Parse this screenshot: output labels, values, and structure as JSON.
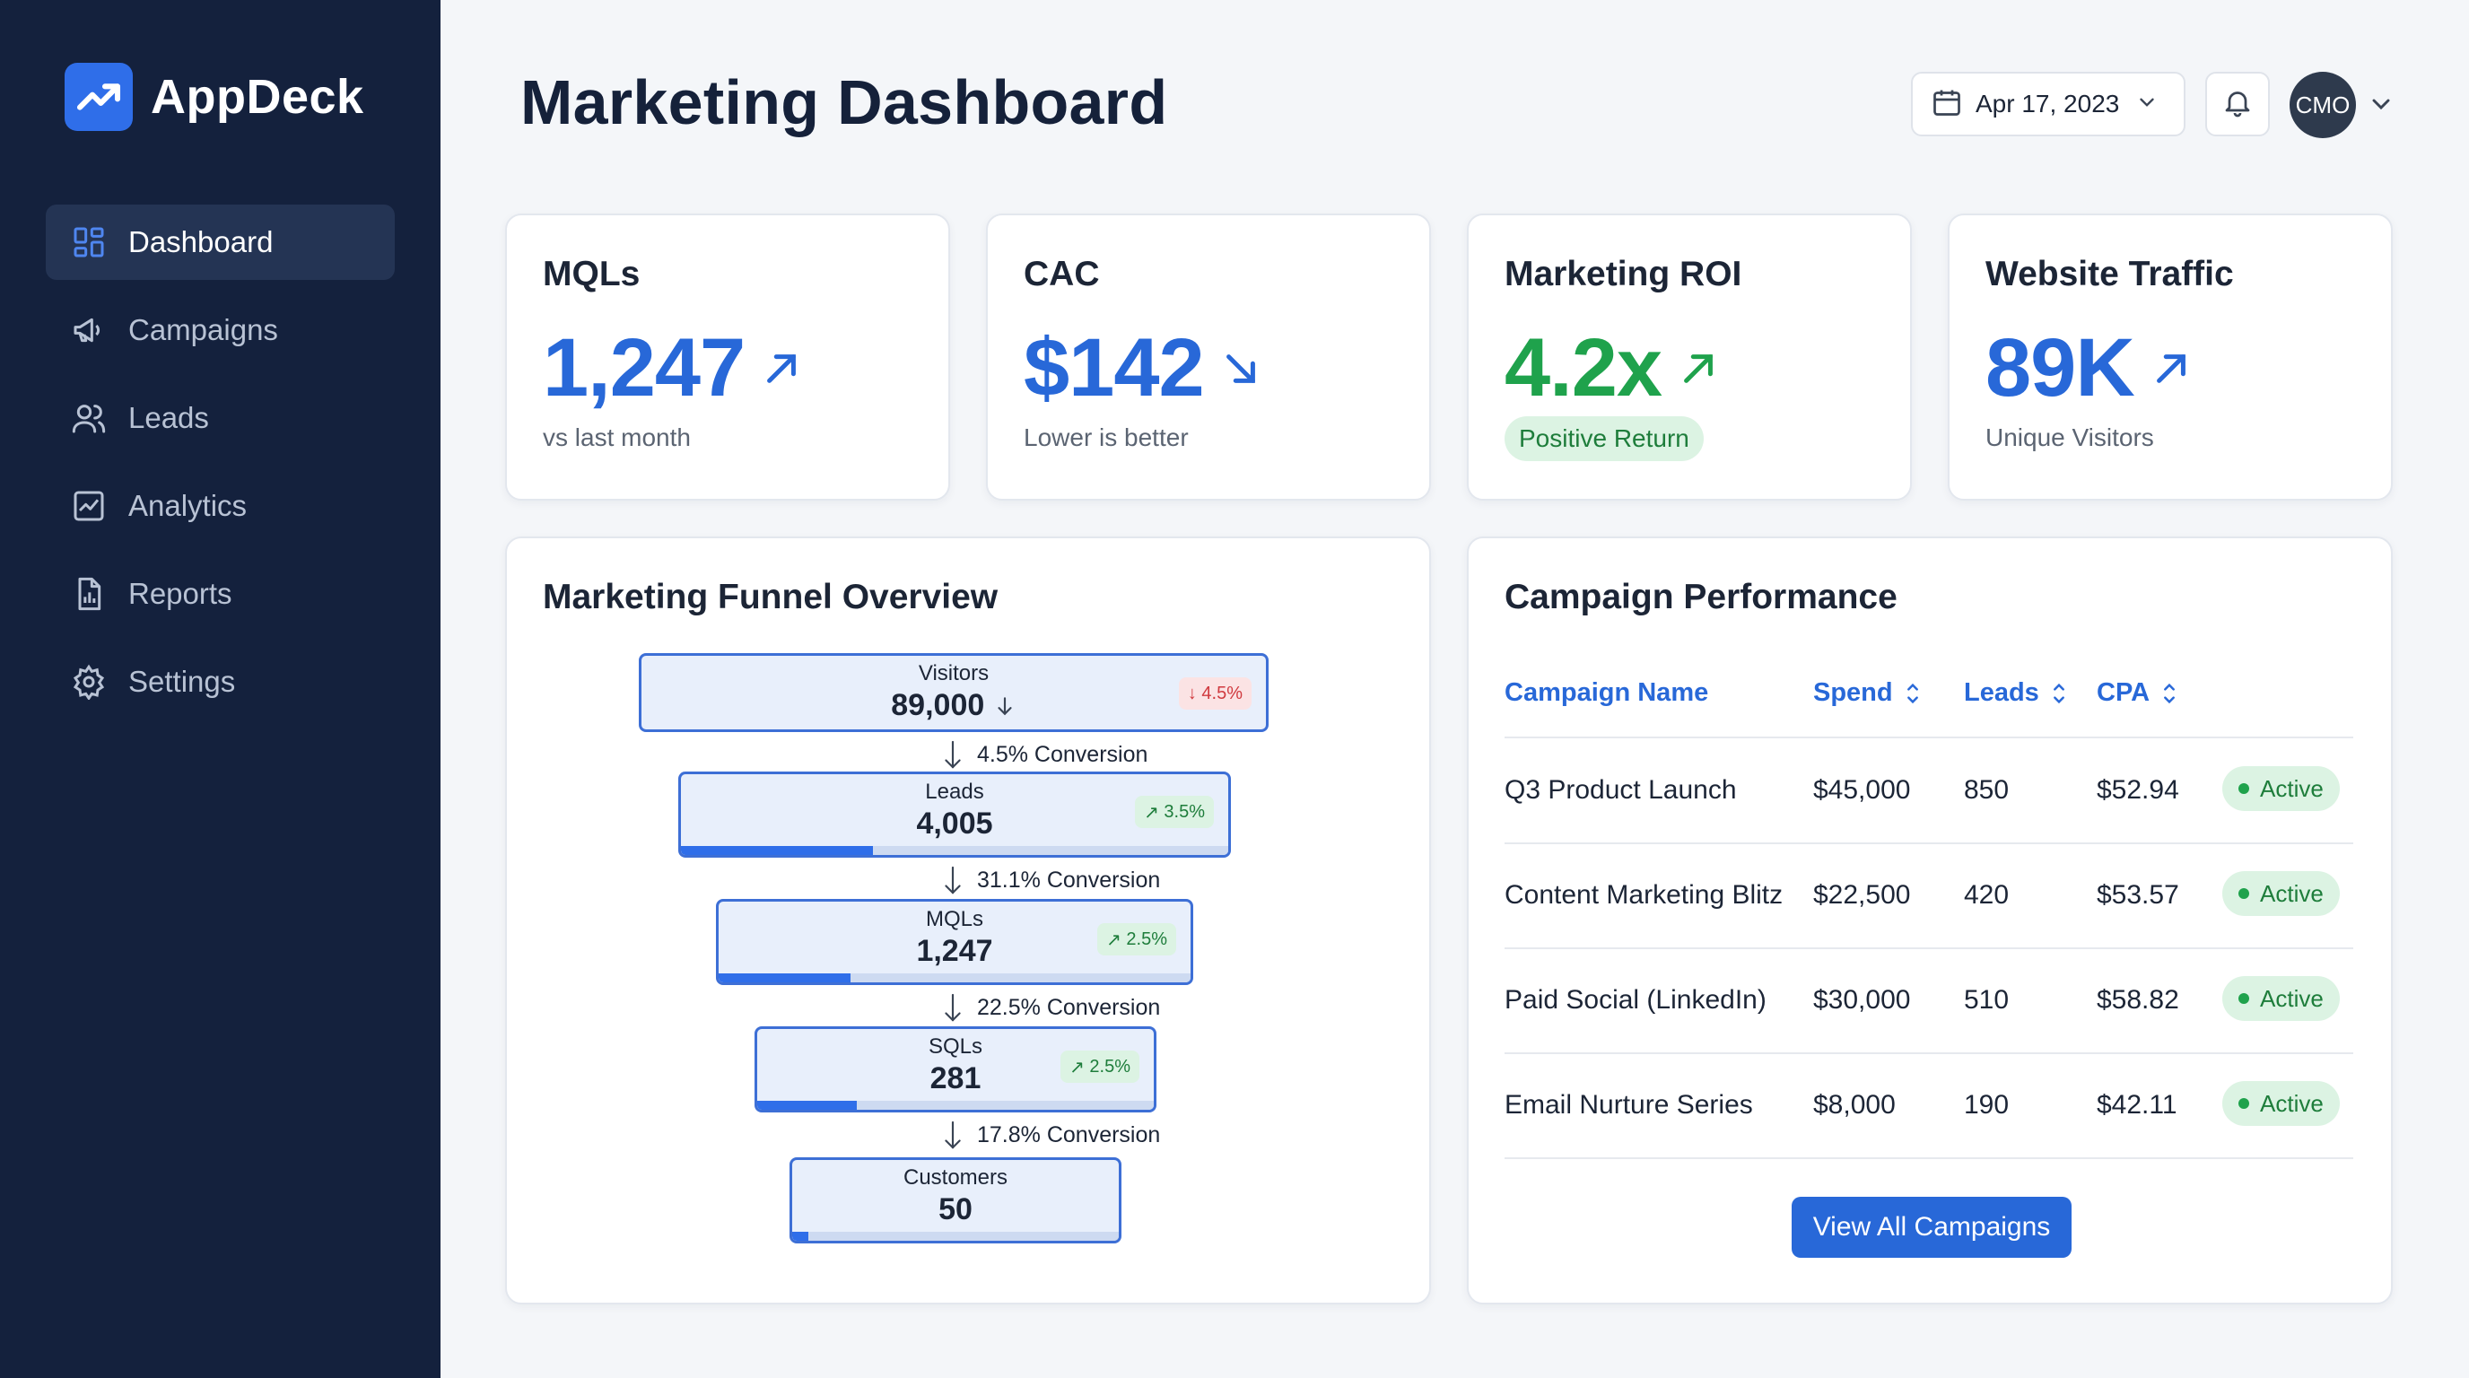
{
  "app": {
    "name": "AppDeck",
    "logo_icon": "trend-up-logo-icon"
  },
  "sidebar": {
    "items": [
      {
        "label": "Dashboard",
        "icon": "dashboard-icon",
        "active": true
      },
      {
        "label": "Campaigns",
        "icon": "megaphone-icon"
      },
      {
        "label": "Leads",
        "icon": "users-icon"
      },
      {
        "label": "Analytics",
        "icon": "analytics-icon"
      },
      {
        "label": "Reports",
        "icon": "report-icon"
      },
      {
        "label": "Settings",
        "icon": "gear-icon"
      }
    ]
  },
  "header": {
    "title": "Marketing Dashboard",
    "date": "Apr 17, 2023",
    "avatar": "CMO"
  },
  "kpis": [
    {
      "title": "MQLs",
      "value": "1,247",
      "trend": "up",
      "sub": "vs last month",
      "color": "#2868d8"
    },
    {
      "title": "CAC",
      "value": "$142",
      "trend": "down",
      "sub": "Lower is better",
      "color": "#2868d8"
    },
    {
      "title": "Marketing ROI",
      "value": "4.2x",
      "trend": "up",
      "pill": "Positive Return",
      "color": "#1fa24c"
    },
    {
      "title": "Website Traffic",
      "value": "89K",
      "trend": "up",
      "sub": "Unique Visitors",
      "color": "#2868d8"
    }
  ],
  "funnel": {
    "title": "Marketing Funnel Overview",
    "stages": [
      {
        "label": "Visitors",
        "value": "89,000",
        "badge": "4.5%",
        "badge_dir": "down",
        "progress": 0
      },
      {
        "label": "Leads",
        "value": "4,005",
        "badge": "3.5%",
        "badge_dir": "up",
        "progress": 0.35
      },
      {
        "label": "MQLs",
        "value": "1,247",
        "badge": "2.5%",
        "badge_dir": "up",
        "progress": 0.28
      },
      {
        "label": "SQLs",
        "value": "281",
        "badge": "2.5%",
        "badge_dir": "up",
        "progress": 0.25
      },
      {
        "label": "Customers",
        "value": "50",
        "progress": 0.05
      }
    ],
    "conversions": [
      "4.5% Conversion",
      "31.1% Conversion",
      "22.5% Conversion",
      "17.8% Conversion"
    ]
  },
  "campaigns": {
    "title": "Campaign Performance",
    "columns": [
      "Campaign Name",
      "Spend",
      "Leads",
      "CPA"
    ],
    "rows": [
      {
        "name": "Q3 Product Launch",
        "spend": "$45,000",
        "leads": "850",
        "cpa": "$52.94",
        "status": "Active"
      },
      {
        "name": "Content Marketing Blitz",
        "spend": "$22,500",
        "leads": "420",
        "cpa": "$53.57",
        "status": "Active"
      },
      {
        "name": "Paid Social (LinkedIn)",
        "spend": "$30,000",
        "leads": "510",
        "cpa": "$58.82",
        "status": "Active"
      },
      {
        "name": "Email Nurture Series",
        "spend": "$8,000",
        "leads": "190",
        "cpa": "$42.11",
        "status": "Active"
      }
    ],
    "button": "View All Campaigns"
  }
}
